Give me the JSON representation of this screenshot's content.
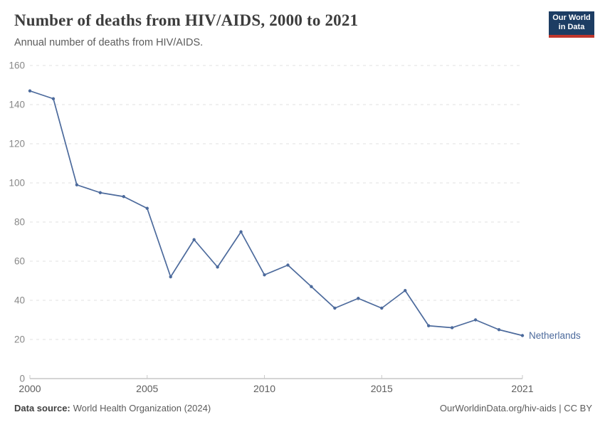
{
  "header": {
    "logo": {
      "line1": "Our World",
      "line2": "in Data",
      "bg_color": "#1d3d63",
      "accent_color": "#c0362c"
    }
  },
  "chart_data": {
    "type": "line",
    "title": "Number of deaths from HIV/AIDS, 2000 to 2021",
    "subtitle": "Annual number of deaths from HIV/AIDS.",
    "x": [
      2000,
      2001,
      2002,
      2003,
      2004,
      2005,
      2006,
      2007,
      2008,
      2009,
      2010,
      2011,
      2012,
      2013,
      2014,
      2015,
      2016,
      2017,
      2018,
      2019,
      2020,
      2021
    ],
    "series": [
      {
        "name": "Netherlands",
        "color": "#4c6a9c",
        "values": [
          147,
          143,
          99,
          95,
          93,
          87,
          52,
          71,
          57,
          75,
          53,
          58,
          47,
          36,
          41,
          36,
          45,
          27,
          26,
          30,
          25,
          22
        ]
      }
    ],
    "xlabel": "",
    "ylabel": "",
    "ylim": [
      0,
      160
    ],
    "yticks": [
      0,
      20,
      40,
      60,
      80,
      100,
      120,
      140,
      160
    ],
    "xticks": [
      2000,
      2005,
      2010,
      2015,
      2021
    ],
    "grid": "horizontal-dashed",
    "legend_position": "end-of-line"
  },
  "footer": {
    "source_label": "Data source:",
    "source_value": "World Health Organization (2024)",
    "url": "OurWorldinData.org/hiv-aids",
    "separator": " | ",
    "license": "CC BY"
  }
}
